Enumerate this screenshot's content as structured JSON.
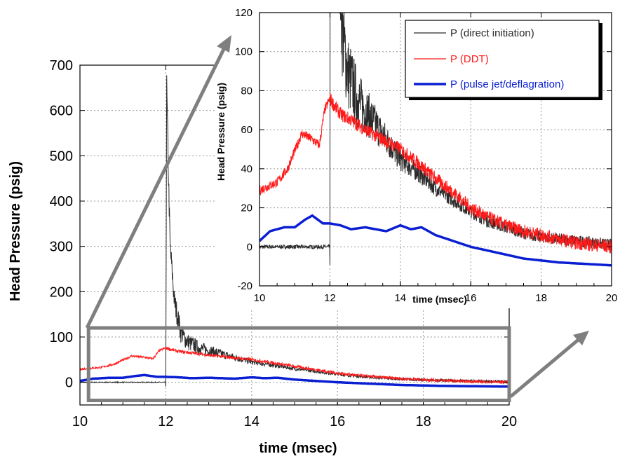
{
  "chart_data": [
    {
      "type": "line",
      "xlabel": "time (msec)",
      "ylabel": "Head Pressure (psig)",
      "xlim": [
        10,
        20
      ],
      "ylim": [
        -50,
        700
      ],
      "xticks": [
        "10",
        "12",
        "14",
        "16",
        "18",
        "20"
      ],
      "yticks": [
        "0",
        "100",
        "200",
        "300",
        "400",
        "500",
        "600",
        "700"
      ],
      "grid": true,
      "legend": "none",
      "zoom_region": {
        "x": [
          10.2,
          20
        ],
        "y": [
          -40,
          120
        ]
      },
      "series": [
        {
          "name": "P (direct initiation)",
          "color": "#2a2a2a",
          "x": [
            10,
            11.9,
            12.0,
            12.02,
            12.05,
            12.1,
            12.2,
            12.35,
            12.5,
            12.8,
            13.2,
            13.6,
            14.0,
            14.5,
            15.0,
            15.5,
            16.0,
            16.5,
            17.0,
            17.5,
            18.0,
            18.5,
            19.0,
            19.5,
            20.0
          ],
          "y": [
            0,
            0,
            0,
            660,
            510,
            300,
            180,
            110,
            90,
            75,
            65,
            55,
            45,
            38,
            30,
            24,
            18,
            13,
            10,
            7,
            5,
            4,
            3,
            2,
            1
          ]
        },
        {
          "name": "P (DDT)",
          "color": "#ff1a1a",
          "x": [
            10,
            10.5,
            10.8,
            11.2,
            11.5,
            11.7,
            11.85,
            12.0,
            12.1,
            12.3,
            12.6,
            13.0,
            13.5,
            14.0,
            14.5,
            15.0,
            15.5,
            16.0,
            16.5,
            17.0,
            17.5,
            18.0,
            18.5,
            19.0,
            19.5,
            20.0
          ],
          "y": [
            29,
            33,
            40,
            58,
            55,
            52,
            70,
            76,
            73,
            68,
            65,
            60,
            55,
            50,
            43,
            35,
            28,
            20,
            15,
            11,
            8,
            6,
            4,
            2,
            1,
            0
          ]
        },
        {
          "name": "P (pulse jet/deflagration)",
          "color": "#0a1fd1",
          "x": [
            10,
            10.3,
            10.7,
            11.0,
            11.3,
            11.5,
            11.8,
            12.0,
            12.3,
            12.6,
            13.0,
            13.3,
            13.6,
            14.0,
            14.3,
            14.6,
            15.0,
            15.5,
            16.0,
            16.5,
            17.0,
            17.5,
            18.0,
            18.5,
            19.0,
            19.5,
            20.0
          ],
          "y": [
            3,
            8,
            10,
            10,
            14,
            16,
            12,
            12,
            11,
            9,
            10,
            9,
            8,
            11,
            9,
            10,
            6,
            3,
            0,
            -2,
            -4,
            -6,
            -7,
            -8,
            -8.5,
            -9,
            -9.5
          ]
        }
      ]
    },
    {
      "type": "line",
      "xlabel": "time (msec)",
      "ylabel": "Head Pressure (psig)",
      "xlim": [
        10,
        20
      ],
      "ylim": [
        -20,
        120
      ],
      "xticks": [
        "10",
        "12",
        "14",
        "16",
        "18",
        "20"
      ],
      "yticks": [
        "-20",
        "0",
        "20",
        "40",
        "60",
        "80",
        "100",
        "120"
      ],
      "grid": true,
      "legend": "top-right",
      "series": [
        {
          "name": "P (direct initiation)",
          "color": "#2a2a2a",
          "ref": 0
        },
        {
          "name": "P (DDT)",
          "color": "#ff1a1a",
          "ref": 1
        },
        {
          "name": "P (pulse jet/deflagration)",
          "color": "#0a1fd1",
          "ref": 2
        }
      ]
    }
  ]
}
